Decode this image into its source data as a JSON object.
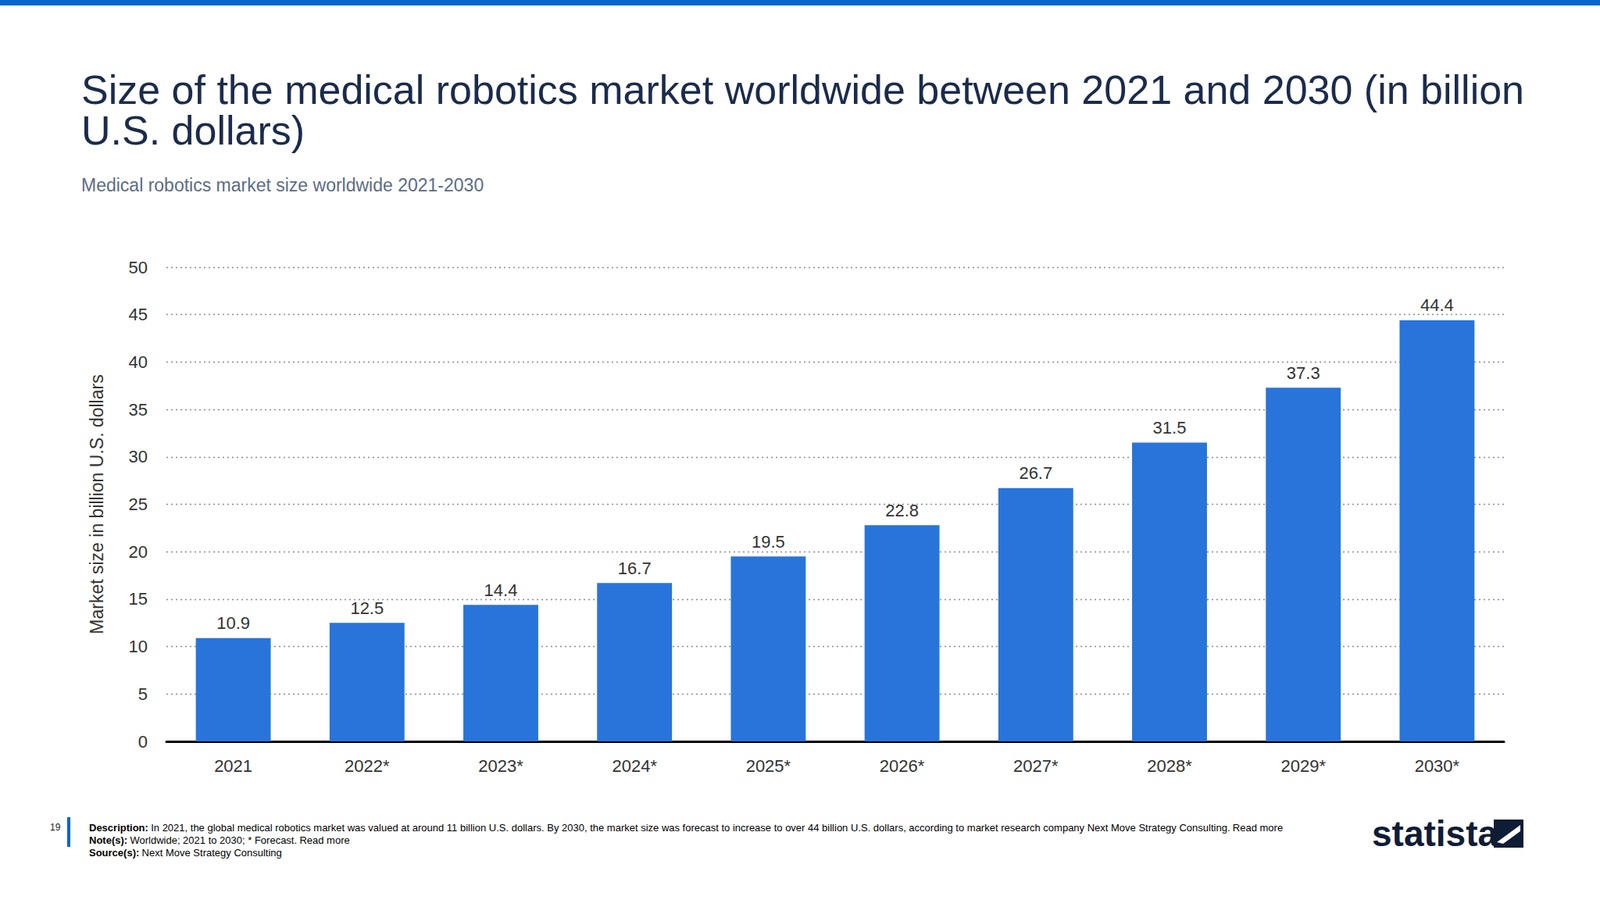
{
  "chart_data": {
    "type": "bar",
    "title": "Size of the medical robotics market worldwide between 2021 and 2030 (in billion U.S. dollars)",
    "subtitle": "Medical robotics market size worldwide 2021-2030",
    "y_label": "Market size in billion U.S. dollars",
    "categories": [
      "2021",
      "2022*",
      "2023*",
      "2024*",
      "2025*",
      "2026*",
      "2027*",
      "2028*",
      "2029*",
      "2030*"
    ],
    "values": [
      10.9,
      12.5,
      14.4,
      16.7,
      19.5,
      22.8,
      26.7,
      31.5,
      37.3,
      44.4
    ],
    "color": "#2874db",
    "ylim": [
      0,
      50
    ],
    "yticks": [
      0,
      5,
      10,
      15,
      20,
      25,
      30,
      35,
      40,
      45,
      50
    ],
    "grid": true,
    "data_labels": true,
    "footer": {
      "page": "19",
      "description_label": "Description:",
      "description": "In 2021, the global medical robotics market was valued at around 11 billion U.S. dollars. By 2030, the market size was forecast to increase to over 44 billion U.S. dollars, according to market research company Next Move Strategy Consulting.",
      "notes_label": "Note(s):",
      "notes": "Worldwide; 2021 to 2030; * Forecast.",
      "source_label": "Source(s):",
      "source": "Next Move Strategy Consulting",
      "read_more": "Read more"
    },
    "brand": "statista"
  }
}
